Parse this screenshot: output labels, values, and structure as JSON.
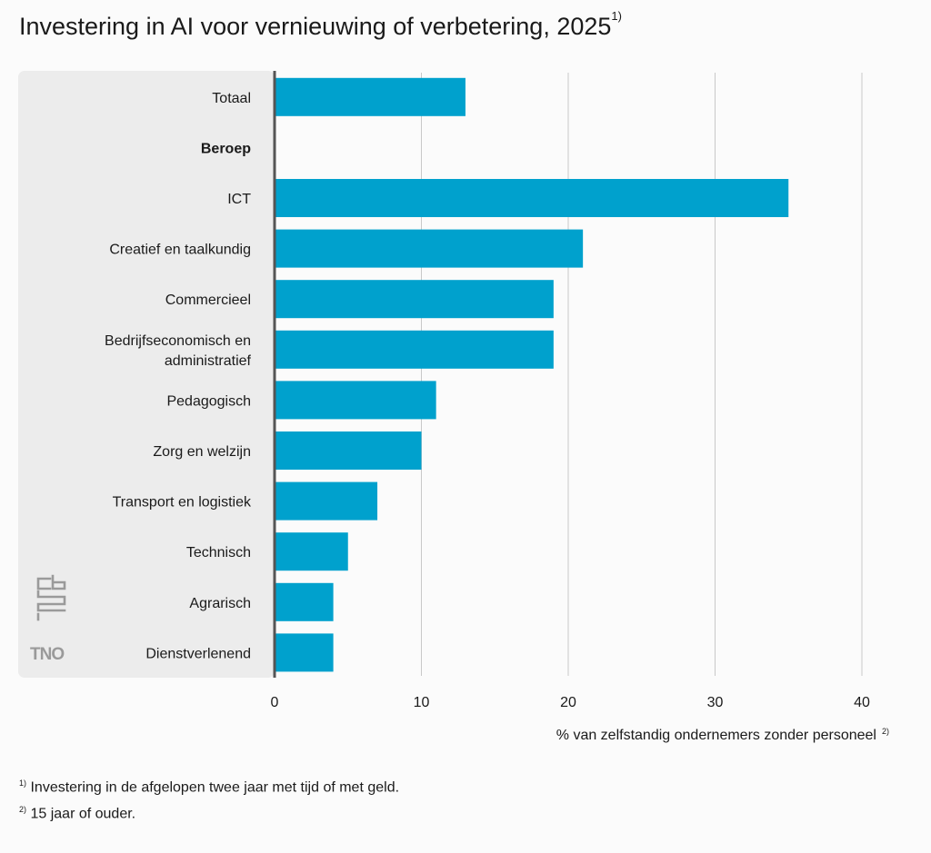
{
  "title": "Investering in AI voor vernieuwing of verbetering, 2025",
  "title_note_marker": "1)",
  "colors": {
    "bar": "#00a1cd",
    "panel": "#ececec",
    "axis": "#555555",
    "grid": "#c8c8c8"
  },
  "logos": [
    "cbs-logo",
    "TNO"
  ],
  "chart_data": {
    "type": "bar",
    "orientation": "horizontal",
    "categories": [
      "Totaal",
      "Beroep",
      "ICT",
      "Creatief en taalkundig",
      "Commercieel",
      "Bedrijfseconomisch en administratief",
      "Pedagogisch",
      "Zorg en welzijn",
      "Transport en logistiek",
      "Technisch",
      "Agrarisch",
      "Dienstverlenend"
    ],
    "category_lines": [
      [
        "Totaal"
      ],
      [
        "Beroep"
      ],
      [
        "ICT"
      ],
      [
        "Creatief en taalkundig"
      ],
      [
        "Commercieel"
      ],
      [
        "Bedrijfseconomisch en",
        "administratief"
      ],
      [
        "Pedagogisch"
      ],
      [
        "Zorg en welzijn"
      ],
      [
        "Transport en logistiek"
      ],
      [
        "Technisch"
      ],
      [
        "Agrarisch"
      ],
      [
        "Dienstverlenend"
      ]
    ],
    "header_categories": [
      "Beroep"
    ],
    "values": [
      13,
      null,
      35,
      21,
      19,
      19,
      11,
      10,
      7,
      5,
      4,
      4
    ],
    "xlim": [
      0,
      40
    ],
    "xticks": [
      0,
      10,
      20,
      30,
      40
    ],
    "xlabel": "% van zelfstandig ondernemers zonder personeel",
    "xlabel_note_marker": "2)",
    "grid": true
  },
  "footnotes": [
    {
      "marker": "1)",
      "text": "Investering in de afgelopen twee jaar met tijd of met geld."
    },
    {
      "marker": "2)",
      "text": "15 jaar of ouder."
    }
  ]
}
